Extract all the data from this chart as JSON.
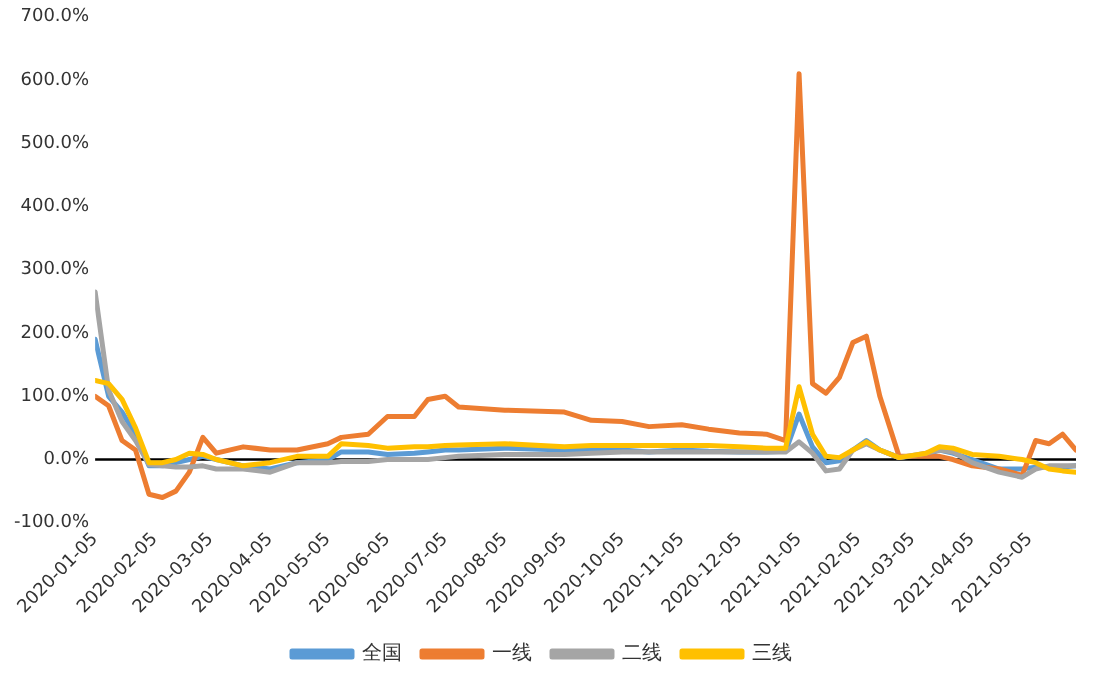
{
  "chart_data": {
    "type": "line",
    "x": [
      "2020-01-05",
      "2020-01-12",
      "2020-01-19",
      "2020-01-26",
      "2020-02-02",
      "2020-02-09",
      "2020-02-16",
      "2020-02-23",
      "2020-03-01",
      "2020-03-08",
      "2020-03-22",
      "2020-04-05",
      "2020-04-19",
      "2020-05-05",
      "2020-05-12",
      "2020-05-26",
      "2020-06-05",
      "2020-06-19",
      "2020-06-26",
      "2020-07-05",
      "2020-07-12",
      "2020-08-05",
      "2020-09-05",
      "2020-09-19",
      "2020-10-05",
      "2020-10-19",
      "2020-11-05",
      "2020-11-19",
      "2020-12-05",
      "2020-12-19",
      "2020-12-29",
      "2021-01-05",
      "2021-01-12",
      "2021-01-19",
      "2021-01-26",
      "2021-02-02",
      "2021-02-09",
      "2021-02-16",
      "2021-02-26",
      "2021-03-12",
      "2021-03-19",
      "2021-03-26",
      "2021-04-05",
      "2021-04-19",
      "2021-05-01",
      "2021-05-08",
      "2021-05-15",
      "2021-05-22",
      "2021-05-29"
    ],
    "series": [
      {
        "name": "全国",
        "color": "#5b9bd5",
        "values": [
          190,
          100,
          75,
          40,
          -10,
          -10,
          -5,
          0,
          5,
          0,
          -10,
          -15,
          -5,
          0,
          12,
          12,
          8,
          10,
          12,
          15,
          15,
          18,
          15,
          15,
          15,
          12,
          15,
          13,
          12,
          12,
          13,
          72,
          20,
          -5,
          -2,
          15,
          30,
          15,
          3,
          8,
          15,
          10,
          0,
          -15,
          -15,
          -12,
          -12,
          -12,
          -10
        ]
      },
      {
        "name": "一线",
        "color": "#ed7d31",
        "values": [
          100,
          85,
          30,
          15,
          -55,
          -60,
          -50,
          -20,
          35,
          10,
          20,
          15,
          15,
          25,
          35,
          40,
          68,
          68,
          95,
          100,
          83,
          78,
          75,
          62,
          60,
          52,
          55,
          48,
          42,
          40,
          30,
          610,
          120,
          105,
          130,
          185,
          195,
          100,
          5,
          5,
          5,
          0,
          -10,
          -15,
          -25,
          30,
          25,
          40,
          15
        ]
      },
      {
        "name": "二线",
        "color": "#a5a5a5",
        "values": [
          265,
          110,
          60,
          30,
          -8,
          -10,
          -12,
          -12,
          -10,
          -15,
          -15,
          -20,
          -5,
          -5,
          -3,
          -3,
          0,
          0,
          0,
          3,
          5,
          8,
          8,
          10,
          12,
          12,
          12,
          12,
          12,
          12,
          12,
          28,
          10,
          -18,
          -15,
          15,
          25,
          15,
          3,
          10,
          15,
          12,
          -5,
          -20,
          -28,
          -15,
          -10,
          -10,
          -10
        ]
      },
      {
        "name": "三线",
        "color": "#ffc000",
        "values": [
          125,
          120,
          95,
          50,
          -5,
          -5,
          0,
          10,
          8,
          0,
          -10,
          -5,
          5,
          5,
          25,
          22,
          18,
          20,
          20,
          22,
          23,
          25,
          20,
          22,
          22,
          22,
          22,
          22,
          20,
          18,
          18,
          115,
          40,
          5,
          3,
          15,
          28,
          15,
          3,
          10,
          20,
          18,
          8,
          5,
          0,
          -5,
          -15,
          -18,
          -20
        ]
      }
    ],
    "xlim": [
      "2020-01-05",
      "2021-05-29"
    ],
    "xticks": [
      {
        "value": "2020-01-05",
        "label": "2020-01-05"
      },
      {
        "value": "2020-02-05",
        "label": "2020-02-05"
      },
      {
        "value": "2020-03-05",
        "label": "2020-03-05"
      },
      {
        "value": "2020-04-05",
        "label": "2020-04-05"
      },
      {
        "value": "2020-05-05",
        "label": "2020-05-05"
      },
      {
        "value": "2020-06-05",
        "label": "2020-06-05"
      },
      {
        "value": "2020-07-05",
        "label": "2020-07-05"
      },
      {
        "value": "2020-08-05",
        "label": "2020-08-05"
      },
      {
        "value": "2020-09-05",
        "label": "2020-09-05"
      },
      {
        "value": "2020-10-05",
        "label": "2020-10-05"
      },
      {
        "value": "2020-11-05",
        "label": "2020-11-05"
      },
      {
        "value": "2020-12-05",
        "label": "2020-12-05"
      },
      {
        "value": "2021-01-05",
        "label": "2021-01-05"
      },
      {
        "value": "2021-02-05",
        "label": "2021-02-05"
      },
      {
        "value": "2021-03-05",
        "label": "2021-03-05"
      },
      {
        "value": "2021-04-05",
        "label": "2021-04-05"
      },
      {
        "value": "2021-05-05",
        "label": "2021-05-05"
      }
    ],
    "ylim": [
      -100,
      700
    ],
    "yticks": [
      {
        "value": -100,
        "label": "-100.0%"
      },
      {
        "value": 0,
        "label": "0.0%"
      },
      {
        "value": 100,
        "label": "100.0%"
      },
      {
        "value": 200,
        "label": "200.0%"
      },
      {
        "value": 300,
        "label": "300.0%"
      },
      {
        "value": 400,
        "label": "400.0%"
      },
      {
        "value": 500,
        "label": "500.0%"
      },
      {
        "value": 600,
        "label": "600.0%"
      },
      {
        "value": 700,
        "label": "700.0%"
      }
    ],
    "ref_lines": [
      {
        "axis": "y",
        "value": 0,
        "color": "#000000"
      }
    ],
    "grid": false,
    "legend": "bottom",
    "marker": "none",
    "line_style": "solid"
  }
}
